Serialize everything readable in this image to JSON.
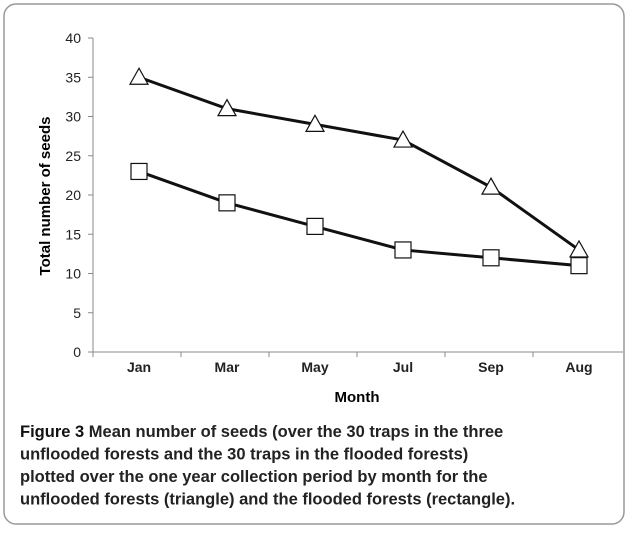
{
  "chart_data": {
    "type": "line",
    "y_label": "Total number of seeds",
    "x_label": "Month",
    "categories": [
      "Jan",
      "Mar",
      "May",
      "Jul",
      "Sep",
      "Aug"
    ],
    "series": [
      {
        "color": "#111111",
        "marker": "triangle",
        "values": [
          35,
          31,
          29,
          27,
          21,
          13
        ]
      },
      {
        "color": "#111111",
        "marker": "square",
        "values": [
          23,
          19,
          16,
          13,
          12,
          11
        ]
      }
    ],
    "ylim": [
      0,
      40
    ],
    "yticks": [
      0,
      5,
      10,
      15,
      20,
      25,
      30,
      35,
      40
    ],
    "grid": false
  },
  "caption": {
    "label": "Figure 3",
    "lines": [
      "Mean number of seeds (over the 30 traps in the three",
      "unflooded forests and the 30 traps in the flooded forests)",
      "plotted over the one year collection period by month for the",
      "unflooded forests (triangle) and the flooded forests (rectangle)."
    ]
  }
}
